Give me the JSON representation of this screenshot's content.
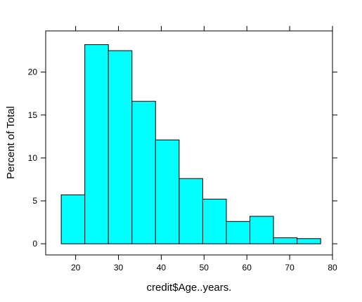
{
  "chart_data": {
    "type": "bar",
    "xlabel": "credit$Age..years.",
    "ylabel": "Percent of Total",
    "xlim": [
      13,
      80
    ],
    "ylim": [
      -1.3,
      24.8
    ],
    "x_ticks": [
      20,
      30,
      40,
      50,
      60,
      70,
      80
    ],
    "y_ticks": [
      0,
      5,
      10,
      15,
      20
    ],
    "bin_edges": [
      16.63,
      22.14,
      27.65,
      33.16,
      38.67,
      44.18,
      49.69,
      55.2,
      60.71,
      66.22,
      71.73,
      77.24
    ],
    "values": [
      5.7,
      23.2,
      22.5,
      16.6,
      12.1,
      7.6,
      5.2,
      2.6,
      3.2,
      0.7,
      0.6
    ],
    "bar_color": "#00ffff",
    "grid": false
  }
}
